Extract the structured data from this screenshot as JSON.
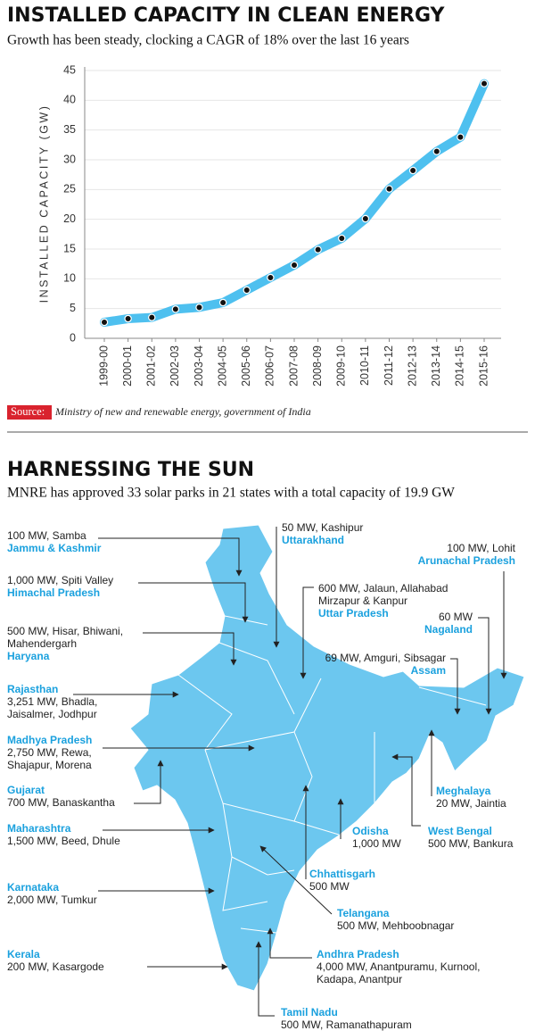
{
  "chart_data": {
    "type": "line",
    "title": "INSTALLED CAPACITY IN CLEAN ENERGY",
    "subtitle": "Growth has been steady, clocking a CAGR of 18% over the last 16 years",
    "y_label": "INSTALLED CAPACITY (GW)",
    "categories": [
      "1999-00",
      "2000-01",
      "2001-02",
      "2002-03",
      "2003-04",
      "2004-05",
      "2005-06",
      "2006-07",
      "2007-08",
      "2008-09",
      "2009-10",
      "2010-11",
      "2011-12",
      "2012-13",
      "2013-14",
      "2014-15",
      "2015-16"
    ],
    "values": [
      2.7,
      3.3,
      3.5,
      4.9,
      5.2,
      6.0,
      8.1,
      10.2,
      12.3,
      14.9,
      16.8,
      20.1,
      25.1,
      28.2,
      31.4,
      33.8,
      42.8
    ],
    "color": "#4ec0ef",
    "ylim": [
      0,
      45
    ],
    "yticks": [
      0,
      5,
      10,
      15,
      20,
      25,
      30,
      35,
      40,
      45
    ],
    "grid": true,
    "source_label": "Source:",
    "source": "Ministry of new and renewable energy, government of India"
  },
  "map": {
    "title": "HARNESSING THE SUN",
    "subtitle": "MNRE has approved 33 solar parks in 21 states with a total capacity of 19.9 GW",
    "parks": [
      {
        "state": "Jammu & Kashmir",
        "detail": [
          "100 MW, Samba"
        ]
      },
      {
        "state": "Himachal Pradesh",
        "detail": [
          "1,000 MW, Spiti Valley"
        ]
      },
      {
        "state": "Haryana",
        "detail": [
          "500 MW, Hisar, Bhiwani,",
          "Mahendergarh"
        ]
      },
      {
        "state": "Rajasthan",
        "detail": [
          "3,251 MW, Bhadla,",
          "Jaisalmer, Jodhpur"
        ]
      },
      {
        "state": "Madhya Pradesh",
        "detail": [
          "2,750 MW, Rewa,",
          "Shajapur, Morena"
        ]
      },
      {
        "state": "Gujarat",
        "detail": [
          "700 MW, Banaskantha"
        ]
      },
      {
        "state": "Maharashtra",
        "detail": [
          "1,500 MW, Beed, Dhule"
        ]
      },
      {
        "state": "Karnataka",
        "detail": [
          "2,000 MW, Tumkur"
        ]
      },
      {
        "state": "Kerala",
        "detail": [
          "200 MW, Kasargode"
        ]
      },
      {
        "state": "Uttarakhand",
        "detail": [
          "50 MW, Kashipur"
        ]
      },
      {
        "state": "Uttar Pradesh",
        "detail": [
          "600 MW, Jalaun, Allahabad",
          "Mirzapur & Kanpur"
        ]
      },
      {
        "state": "Arunachal Pradesh",
        "detail": [
          "100 MW, Lohit"
        ]
      },
      {
        "state": "Nagaland",
        "detail": [
          "60 MW"
        ]
      },
      {
        "state": "Assam",
        "detail": [
          "69 MW, Amguri, Sibsagar"
        ]
      },
      {
        "state": "Meghalaya",
        "detail": [
          "20 MW, Jaintia"
        ]
      },
      {
        "state": "West Bengal",
        "detail": [
          "500 MW, Bankura"
        ]
      },
      {
        "state": "Odisha",
        "detail": [
          "1,000 MW"
        ]
      },
      {
        "state": "Chhattisgarh",
        "detail": [
          "500 MW"
        ]
      },
      {
        "state": "Telangana",
        "detail": [
          "500 MW, Mehboobnagar"
        ]
      },
      {
        "state": "Andhra Pradesh",
        "detail": [
          "4,000 MW, Anantpuramu, Kurnool,",
          "Kadapa, Anantpur"
        ]
      },
      {
        "state": "Tamil Nadu",
        "detail": [
          "500 MW, Ramanathapuram"
        ]
      }
    ]
  }
}
